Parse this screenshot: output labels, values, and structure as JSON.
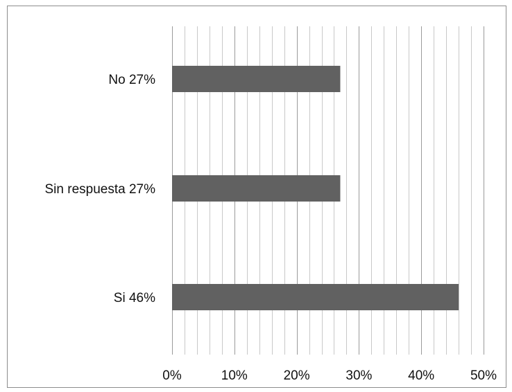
{
  "chart_data": {
    "type": "bar",
    "orientation": "horizontal",
    "title": "",
    "xlabel": "",
    "ylabel": "",
    "categories": [
      "No 27%",
      "Sin respuesta  27%",
      "Si 46%"
    ],
    "values": [
      0.27,
      0.27,
      0.46
    ],
    "xlim": [
      0,
      0.5
    ],
    "x_ticks": [
      0,
      0.1,
      0.2,
      0.3,
      0.4,
      0.5
    ],
    "x_tick_labels": [
      "0%",
      "10%",
      "20%",
      "30%",
      "40%",
      "50%"
    ],
    "minor_grid_step": 0.02,
    "grid": true,
    "legend": "none",
    "colors": {
      "bar": "#616161",
      "major_grid": "#9a9a9a",
      "minor_grid": "#c8c8c8",
      "frame": "#8c8c8c",
      "text": "#111111"
    }
  }
}
